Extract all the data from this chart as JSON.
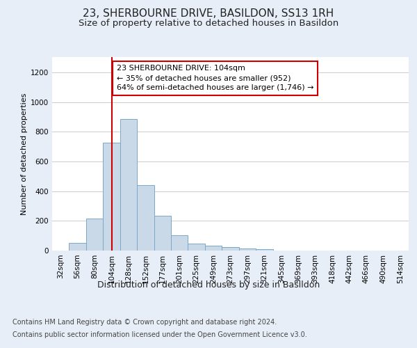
{
  "title": "23, SHERBOURNE DRIVE, BASILDON, SS13 1RH",
  "subtitle": "Size of property relative to detached houses in Basildon",
  "xlabel": "Distribution of detached houses by size in Basildon",
  "ylabel": "Number of detached properties",
  "categories": [
    "32sqm",
    "56sqm",
    "80sqm",
    "104sqm",
    "128sqm",
    "152sqm",
    "177sqm",
    "201sqm",
    "225sqm",
    "249sqm",
    "273sqm",
    "297sqm",
    "321sqm",
    "345sqm",
    "369sqm",
    "393sqm",
    "418sqm",
    "442sqm",
    "466sqm",
    "490sqm",
    "514sqm"
  ],
  "values": [
    0,
    50,
    215,
    725,
    885,
    440,
    235,
    105,
    45,
    35,
    25,
    15,
    10,
    0,
    0,
    0,
    0,
    0,
    0,
    0,
    0
  ],
  "bar_color": "#c9d9e8",
  "bar_edgecolor": "#7aa8c9",
  "vline_x_index": 3,
  "vline_color": "#cc0000",
  "annotation_text": "23 SHERBOURNE DRIVE: 104sqm\n← 35% of detached houses are smaller (952)\n64% of semi-detached houses are larger (1,746) →",
  "annotation_box_facecolor": "#ffffff",
  "annotation_box_edgecolor": "#cc0000",
  "ylim": [
    0,
    1300
  ],
  "yticks": [
    0,
    200,
    400,
    600,
    800,
    1000,
    1200
  ],
  "background_color": "#e8eef8",
  "plot_background": "#ffffff",
  "grid_color": "#cccccc",
  "footer_line1": "Contains HM Land Registry data © Crown copyright and database right 2024.",
  "footer_line2": "Contains public sector information licensed under the Open Government Licence v3.0.",
  "title_fontsize": 11,
  "subtitle_fontsize": 9.5,
  "xlabel_fontsize": 9,
  "ylabel_fontsize": 8,
  "tick_fontsize": 7.5,
  "footer_fontsize": 7,
  "annotation_fontsize": 8
}
